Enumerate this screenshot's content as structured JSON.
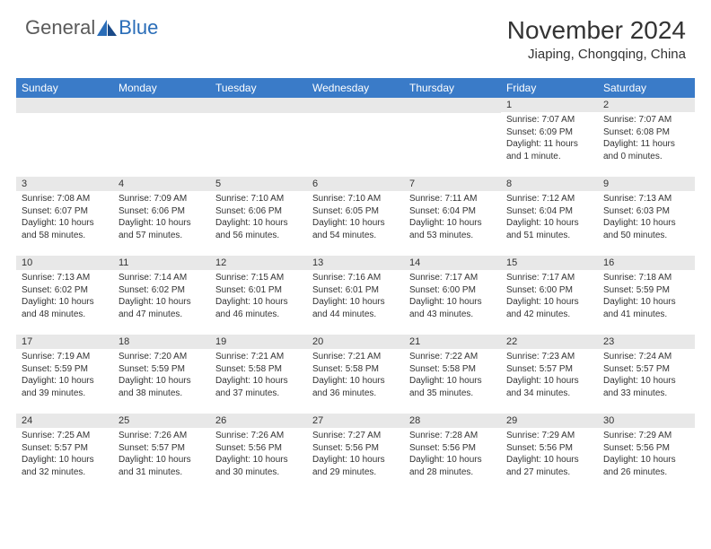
{
  "logo": {
    "text1": "General",
    "text2": "Blue"
  },
  "title": "November 2024",
  "location": "Jiaping, Chongqing, China",
  "colors": {
    "header_bg": "#3a7bc8",
    "header_fg": "#ffffff",
    "daynum_bg": "#e8e8e8",
    "text": "#333333",
    "logo_gray": "#5a5a5a",
    "logo_blue": "#2a6db8",
    "page_bg": "#ffffff"
  },
  "day_headers": [
    "Sunday",
    "Monday",
    "Tuesday",
    "Wednesday",
    "Thursday",
    "Friday",
    "Saturday"
  ],
  "weeks": [
    [
      null,
      null,
      null,
      null,
      null,
      {
        "n": "1",
        "sr": "Sunrise: 7:07 AM",
        "ss": "Sunset: 6:09 PM",
        "dl": "Daylight: 11 hours and 1 minute."
      },
      {
        "n": "2",
        "sr": "Sunrise: 7:07 AM",
        "ss": "Sunset: 6:08 PM",
        "dl": "Daylight: 11 hours and 0 minutes."
      }
    ],
    [
      {
        "n": "3",
        "sr": "Sunrise: 7:08 AM",
        "ss": "Sunset: 6:07 PM",
        "dl": "Daylight: 10 hours and 58 minutes."
      },
      {
        "n": "4",
        "sr": "Sunrise: 7:09 AM",
        "ss": "Sunset: 6:06 PM",
        "dl": "Daylight: 10 hours and 57 minutes."
      },
      {
        "n": "5",
        "sr": "Sunrise: 7:10 AM",
        "ss": "Sunset: 6:06 PM",
        "dl": "Daylight: 10 hours and 56 minutes."
      },
      {
        "n": "6",
        "sr": "Sunrise: 7:10 AM",
        "ss": "Sunset: 6:05 PM",
        "dl": "Daylight: 10 hours and 54 minutes."
      },
      {
        "n": "7",
        "sr": "Sunrise: 7:11 AM",
        "ss": "Sunset: 6:04 PM",
        "dl": "Daylight: 10 hours and 53 minutes."
      },
      {
        "n": "8",
        "sr": "Sunrise: 7:12 AM",
        "ss": "Sunset: 6:04 PM",
        "dl": "Daylight: 10 hours and 51 minutes."
      },
      {
        "n": "9",
        "sr": "Sunrise: 7:13 AM",
        "ss": "Sunset: 6:03 PM",
        "dl": "Daylight: 10 hours and 50 minutes."
      }
    ],
    [
      {
        "n": "10",
        "sr": "Sunrise: 7:13 AM",
        "ss": "Sunset: 6:02 PM",
        "dl": "Daylight: 10 hours and 48 minutes."
      },
      {
        "n": "11",
        "sr": "Sunrise: 7:14 AM",
        "ss": "Sunset: 6:02 PM",
        "dl": "Daylight: 10 hours and 47 minutes."
      },
      {
        "n": "12",
        "sr": "Sunrise: 7:15 AM",
        "ss": "Sunset: 6:01 PM",
        "dl": "Daylight: 10 hours and 46 minutes."
      },
      {
        "n": "13",
        "sr": "Sunrise: 7:16 AM",
        "ss": "Sunset: 6:01 PM",
        "dl": "Daylight: 10 hours and 44 minutes."
      },
      {
        "n": "14",
        "sr": "Sunrise: 7:17 AM",
        "ss": "Sunset: 6:00 PM",
        "dl": "Daylight: 10 hours and 43 minutes."
      },
      {
        "n": "15",
        "sr": "Sunrise: 7:17 AM",
        "ss": "Sunset: 6:00 PM",
        "dl": "Daylight: 10 hours and 42 minutes."
      },
      {
        "n": "16",
        "sr": "Sunrise: 7:18 AM",
        "ss": "Sunset: 5:59 PM",
        "dl": "Daylight: 10 hours and 41 minutes."
      }
    ],
    [
      {
        "n": "17",
        "sr": "Sunrise: 7:19 AM",
        "ss": "Sunset: 5:59 PM",
        "dl": "Daylight: 10 hours and 39 minutes."
      },
      {
        "n": "18",
        "sr": "Sunrise: 7:20 AM",
        "ss": "Sunset: 5:59 PM",
        "dl": "Daylight: 10 hours and 38 minutes."
      },
      {
        "n": "19",
        "sr": "Sunrise: 7:21 AM",
        "ss": "Sunset: 5:58 PM",
        "dl": "Daylight: 10 hours and 37 minutes."
      },
      {
        "n": "20",
        "sr": "Sunrise: 7:21 AM",
        "ss": "Sunset: 5:58 PM",
        "dl": "Daylight: 10 hours and 36 minutes."
      },
      {
        "n": "21",
        "sr": "Sunrise: 7:22 AM",
        "ss": "Sunset: 5:58 PM",
        "dl": "Daylight: 10 hours and 35 minutes."
      },
      {
        "n": "22",
        "sr": "Sunrise: 7:23 AM",
        "ss": "Sunset: 5:57 PM",
        "dl": "Daylight: 10 hours and 34 minutes."
      },
      {
        "n": "23",
        "sr": "Sunrise: 7:24 AM",
        "ss": "Sunset: 5:57 PM",
        "dl": "Daylight: 10 hours and 33 minutes."
      }
    ],
    [
      {
        "n": "24",
        "sr": "Sunrise: 7:25 AM",
        "ss": "Sunset: 5:57 PM",
        "dl": "Daylight: 10 hours and 32 minutes."
      },
      {
        "n": "25",
        "sr": "Sunrise: 7:26 AM",
        "ss": "Sunset: 5:57 PM",
        "dl": "Daylight: 10 hours and 31 minutes."
      },
      {
        "n": "26",
        "sr": "Sunrise: 7:26 AM",
        "ss": "Sunset: 5:56 PM",
        "dl": "Daylight: 10 hours and 30 minutes."
      },
      {
        "n": "27",
        "sr": "Sunrise: 7:27 AM",
        "ss": "Sunset: 5:56 PM",
        "dl": "Daylight: 10 hours and 29 minutes."
      },
      {
        "n": "28",
        "sr": "Sunrise: 7:28 AM",
        "ss": "Sunset: 5:56 PM",
        "dl": "Daylight: 10 hours and 28 minutes."
      },
      {
        "n": "29",
        "sr": "Sunrise: 7:29 AM",
        "ss": "Sunset: 5:56 PM",
        "dl": "Daylight: 10 hours and 27 minutes."
      },
      {
        "n": "30",
        "sr": "Sunrise: 7:29 AM",
        "ss": "Sunset: 5:56 PM",
        "dl": "Daylight: 10 hours and 26 minutes."
      }
    ]
  ]
}
